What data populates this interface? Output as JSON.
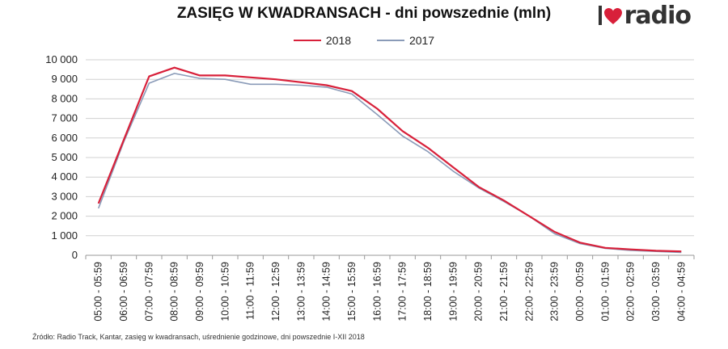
{
  "chart_data": {
    "type": "line",
    "title": "ZASIĘG W KWADRANSACH - dni powszednie (mln)",
    "categories": [
      "05:00 - 05:59",
      "06:00 - 06:59",
      "07:00 - 07:59",
      "08:00 - 08:59",
      "09:00 - 09:59",
      "10:00 - 10:59",
      "11:00 - 11:59",
      "12:00 - 12:59",
      "13:00 - 13:59",
      "14:00 - 14:59",
      "15:00 - 15:59",
      "16:00 - 16:59",
      "17:00 - 17:59",
      "18:00 - 18:59",
      "19:00 - 19:59",
      "20:00 - 20:59",
      "21:00 - 21:59",
      "22:00 - 22:59",
      "23:00 - 23:59",
      "00:00 - 00:59",
      "01:00 - 01:59",
      "02:00 - 02:59",
      "03:00 - 03:59",
      "04:00 - 04:59"
    ],
    "series": [
      {
        "name": "2018",
        "color": "#d8203a",
        "values": [
          2650,
          5900,
          9150,
          9600,
          9200,
          9200,
          9100,
          9000,
          8850,
          8700,
          8400,
          7500,
          6350,
          5500,
          4500,
          3500,
          2800,
          2000,
          1200,
          650,
          380,
          300,
          230,
          200
        ]
      },
      {
        "name": "2017",
        "color": "#8a9bb8",
        "values": [
          2400,
          5800,
          8800,
          9300,
          9050,
          9000,
          8750,
          8750,
          8700,
          8600,
          8250,
          7200,
          6100,
          5300,
          4300,
          3450,
          2750,
          2000,
          1100,
          600,
          350,
          250,
          200,
          150
        ]
      }
    ],
    "ylim": [
      0,
      10000
    ],
    "yticks": [
      "0",
      "1 000",
      "2 000",
      "3 000",
      "4 000",
      "5 000",
      "6 000",
      "7 000",
      "8 000",
      "9 000",
      "10 000"
    ],
    "grid": true,
    "legend_position": "top-center"
  },
  "logo": {
    "text": "radio"
  },
  "footer": {
    "source": "Źródło: Radio Track, Kantar, zasięg w kwadransach, uśrednienie godzinowe, dni powszednie I-XII 2018"
  }
}
